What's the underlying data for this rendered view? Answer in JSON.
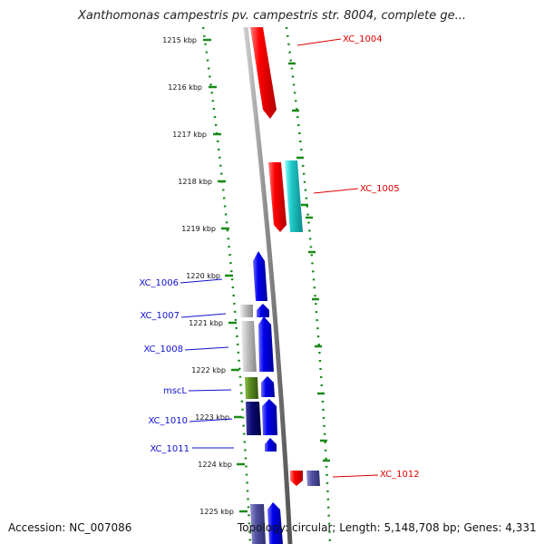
{
  "title": "Xanthomonas campestris pv. campestris str. 8004, complete ge...",
  "footer": {
    "accession": "Accession: NC_007086",
    "topology": "Topology: circular; Length: 5,148,708 bp; Genes: 4,331"
  },
  "ticks": [
    "1215 kbp",
    "1216 kbp",
    "1217 kbp",
    "1218 kbp",
    "1219 kbp",
    "1220 kbp",
    "1221 kbp",
    "1222 kbp",
    "1223 kbp",
    "1224 kbp",
    "1225 kbp"
  ],
  "gene_labels": {
    "xc1004": "XC_1004",
    "xc1005": "XC_1005",
    "xc1006": "XC_1006",
    "xc1007": "XC_1007",
    "xc1008": "XC_1008",
    "mscl": "mscL",
    "xc1010": "XC_1010",
    "xc1011": "XC_1011",
    "xc1012": "XC_1012"
  },
  "colors": {
    "red": "#ff0000",
    "cyan": "#22cccc",
    "blue": "#0000ee",
    "gray": "#bbbbbb",
    "olive": "#5a8a1e",
    "navy": "#0a0a70",
    "slate": "#5050a0",
    "backbone": "#888888",
    "dots": "#1a8a1a"
  }
}
